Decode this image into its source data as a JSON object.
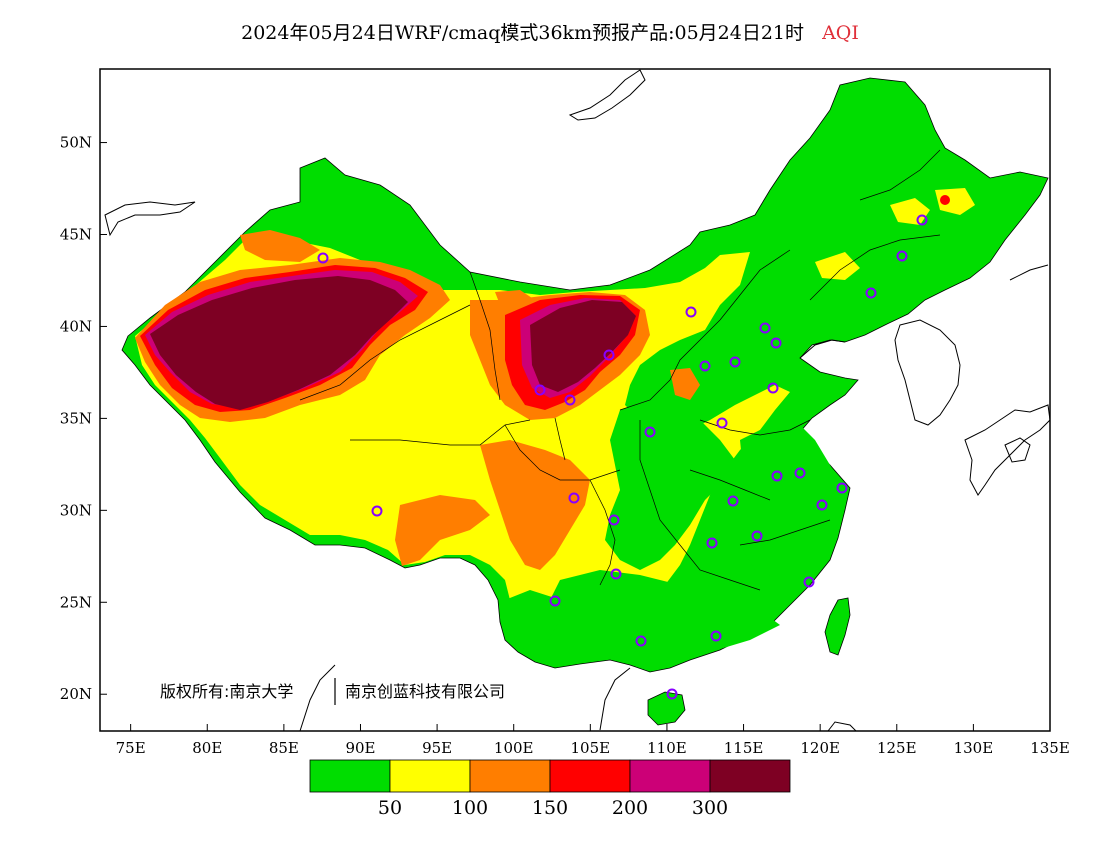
{
  "title": {
    "main": "2024年05月24日WRF/cmaq模式36km预报产品:05月24日21时",
    "variable": "AQI",
    "variable_color": "#e0303a"
  },
  "axes": {
    "x_ticks": [
      "75E",
      "80E",
      "85E",
      "90E",
      "95E",
      "100E",
      "105E",
      "110E",
      "115E",
      "120E",
      "125E",
      "130E",
      "135E"
    ],
    "x_values": [
      75,
      80,
      85,
      90,
      95,
      100,
      105,
      110,
      115,
      120,
      125,
      130,
      135
    ],
    "y_ticks": [
      "50N",
      "45N",
      "40N",
      "35N",
      "30N",
      "25N",
      "20N"
    ],
    "y_values": [
      50,
      45,
      40,
      35,
      30,
      25,
      20
    ],
    "lon_range": [
      73,
      135
    ],
    "lat_range": [
      18,
      54
    ]
  },
  "copyright": {
    "owner": "版权所有:南京大学",
    "partner": "南京创蓝科技有限公司"
  },
  "legend": {
    "colors": [
      "#00dd00",
      "#ffff00",
      "#ff7e00",
      "#ff0000",
      "#cc0077",
      "#7e0023"
    ],
    "labels": [
      "50",
      "100",
      "150",
      "200",
      "300"
    ]
  },
  "colors": {
    "good": "#00dd00",
    "moderate": "#ffff00",
    "usg": "#ff7e00",
    "unhealthy": "#ff0000",
    "very_unhealthy": "#cc0077",
    "hazardous": "#7e0023",
    "station": "#8800ff"
  }
}
